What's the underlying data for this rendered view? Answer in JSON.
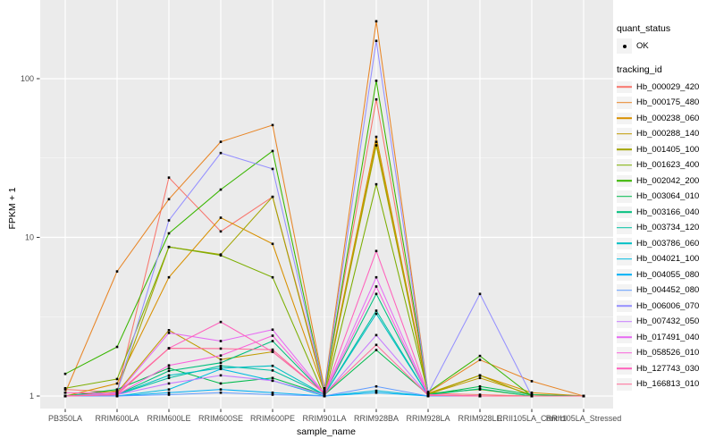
{
  "axes": {
    "x_title": "sample_name",
    "y_title": "FPKM + 1",
    "y_tick_labels": [
      "1",
      "10",
      "100"
    ]
  },
  "legend": {
    "quant_title": "quant_status",
    "quant_items": [
      {
        "label": "OK"
      }
    ],
    "tracking_title": "tracking_id"
  },
  "chart_data": {
    "type": "line",
    "xlabel": "sample_name",
    "ylabel": "FPKM + 1",
    "y_scale": "log10",
    "y_ticks": [
      1,
      10,
      100
    ],
    "y_minor_ticks": [
      3.162,
      31.62
    ],
    "grid": "on",
    "legend_position": "right",
    "panel_background": "#EBEBEB",
    "grid_color": "#FFFFFF",
    "marker_color": "#000000",
    "categories": [
      "PB350LA",
      "RRIM600LA",
      "RRIM600LE",
      "RRIM600SE",
      "RRIM600PE",
      "RRIM901LA",
      "RRIM928BA",
      "RRIM928LA",
      "RRIM928LE",
      "RRII105LA_Control",
      "RRII105LA_Stressed"
    ],
    "series": [
      {
        "name": "Hb_000029_420",
        "color": "#F8766D",
        "values": [
          1.1,
          1.06,
          23.8,
          10.9,
          18.0,
          1.1,
          74,
          1.04,
          1.02,
          1.0,
          1.0
        ]
      },
      {
        "name": "Hb_000175_480",
        "color": "#E88526",
        "values": [
          1.05,
          6.1,
          17.4,
          40.0,
          51.0,
          1.12,
          230,
          1.05,
          1.69,
          1.24,
          1.0
        ]
      },
      {
        "name": "Hb_000238_060",
        "color": "#D89000",
        "values": [
          1.0,
          1.2,
          5.6,
          13.3,
          9.1,
          1.06,
          43.0,
          1.04,
          1.35,
          1.05,
          1.0
        ]
      },
      {
        "name": "Hb_000288_140",
        "color": "#C09B00",
        "values": [
          1.0,
          1.05,
          2.6,
          1.7,
          1.9,
          1.04,
          40.0,
          1.03,
          1.3,
          1.02,
          1.0
        ]
      },
      {
        "name": "Hb_001405_100",
        "color": "#A3A500",
        "values": [
          1.0,
          1.08,
          8.7,
          7.8,
          18.0,
          1.05,
          38.0,
          1.03,
          1.35,
          1.0,
          1.0
        ]
      },
      {
        "name": "Hb_001623_400",
        "color": "#7CAE00",
        "values": [
          1.12,
          1.28,
          8.7,
          7.7,
          5.6,
          1.0,
          21.6,
          1.04,
          1.1,
          1.0,
          1.0
        ]
      },
      {
        "name": "Hb_002042_200",
        "color": "#39B600",
        "values": [
          1.38,
          2.04,
          10.6,
          20.0,
          35.0,
          1.07,
          97.0,
          1.06,
          1.79,
          1.0,
          1.0
        ]
      },
      {
        "name": "Hb_003064_010",
        "color": "#00BB4E",
        "values": [
          1.0,
          1.1,
          1.5,
          1.2,
          1.3,
          1.02,
          1.95,
          1.02,
          1.15,
          1.02,
          1.0
        ]
      },
      {
        "name": "Hb_003166_040",
        "color": "#00BF7D",
        "values": [
          1.0,
          1.02,
          1.44,
          1.62,
          2.22,
          1.03,
          4.4,
          1.02,
          1.11,
          1.0,
          1.0
        ]
      },
      {
        "name": "Hb_003734_120",
        "color": "#00C1A3",
        "values": [
          1.0,
          1.02,
          1.3,
          1.55,
          1.45,
          1.02,
          3.45,
          1.01,
          1.0,
          1.0,
          1.0
        ]
      },
      {
        "name": "Hb_003786_060",
        "color": "#00BFC4",
        "values": [
          1.0,
          1.02,
          1.35,
          1.5,
          1.55,
          1.02,
          3.3,
          1.01,
          1.0,
          1.0,
          1.0
        ]
      },
      {
        "name": "Hb_004021_100",
        "color": "#00BAE0",
        "values": [
          1.0,
          1.0,
          1.1,
          1.48,
          1.25,
          1.0,
          1.08,
          1.0,
          1.0,
          1.0,
          1.0
        ]
      },
      {
        "name": "Hb_004055_080",
        "color": "#00B0F6",
        "values": [
          1.0,
          1.0,
          1.05,
          1.1,
          1.05,
          1.0,
          1.05,
          1.0,
          1.0,
          1.0,
          1.0
        ]
      },
      {
        "name": "Hb_004452_080",
        "color": "#619CFF",
        "values": [
          1.0,
          1.0,
          1.02,
          1.05,
          1.02,
          1.0,
          1.15,
          1.0,
          1.0,
          1.0,
          1.0
        ]
      },
      {
        "name": "Hb_006006_070",
        "color": "#9590FF",
        "values": [
          1.0,
          1.05,
          12.8,
          34.0,
          27.0,
          1.08,
          173,
          1.04,
          4.4,
          1.0,
          1.0
        ]
      },
      {
        "name": "Hb_007432_050",
        "color": "#C77CFF",
        "values": [
          1.0,
          1.02,
          1.2,
          1.35,
          1.25,
          1.02,
          2.42,
          1.01,
          1.0,
          1.0,
          1.0
        ]
      },
      {
        "name": "Hb_017491_040",
        "color": "#E76BF3",
        "values": [
          1.0,
          1.03,
          2.5,
          2.22,
          2.62,
          1.04,
          5.6,
          1.02,
          1.0,
          1.0,
          1.0
        ]
      },
      {
        "name": "Hb_058526_010",
        "color": "#FA62DB",
        "values": [
          1.0,
          1.02,
          1.56,
          1.8,
          2.4,
          1.03,
          4.9,
          1.01,
          1.0,
          1.0,
          1.0
        ]
      },
      {
        "name": "Hb_127743_030",
        "color": "#FF62BC",
        "values": [
          1.05,
          1.04,
          2.0,
          2.93,
          1.9,
          1.04,
          8.2,
          1.02,
          1.0,
          1.0,
          1.0
        ]
      },
      {
        "name": "Hb_166813_010",
        "color": "#FF6A98",
        "values": [
          1.0,
          1.02,
          2.0,
          1.99,
          1.96,
          1.03,
          2.1,
          1.01,
          1.0,
          1.0,
          1.0
        ]
      }
    ]
  }
}
